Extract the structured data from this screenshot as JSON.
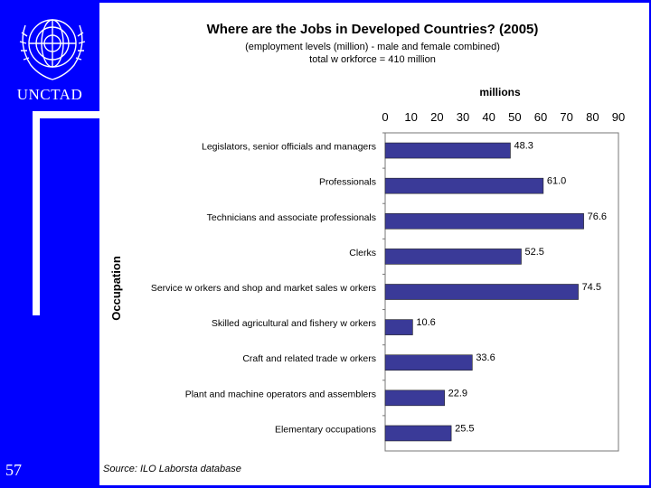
{
  "slide": {
    "org_label": "UNCTAD",
    "page_number": "57",
    "source": "Source: ILO Laborsta database"
  },
  "colors": {
    "background": "#0000FF",
    "bar": "#3A3A98",
    "panel": "#FFFFFF"
  },
  "chart_data": {
    "type": "bar",
    "orientation": "horizontal",
    "title": "Where are the Jobs in Developed Countries? (2005)",
    "subtitle": "(employment levels (million) - male and female combined)",
    "subtitle2": "total w orkforce = 410 million",
    "xlabel": "millions",
    "ylabel": "Occupation",
    "xlim": [
      0,
      90
    ],
    "xticks": [
      "0",
      "10",
      "20",
      "30",
      "40",
      "50",
      "60",
      "70",
      "80",
      "90"
    ],
    "categories": [
      "Legislators, senior officials and managers",
      "Professionals",
      "Technicians and associate professionals",
      "Clerks",
      "Service w orkers and shop and market sales w orkers",
      "Skilled agricultural and fishery w orkers",
      "Craft and related trade w orkers",
      "Plant and machine operators and assemblers",
      "Elementary occupations"
    ],
    "values": [
      48.3,
      61.0,
      76.6,
      52.5,
      74.5,
      10.6,
      33.6,
      22.9,
      25.5
    ],
    "value_labels": [
      "48.3",
      "61.0",
      "76.6",
      "52.5",
      "74.5",
      "10.6",
      "33.6",
      "22.9",
      "25.5"
    ]
  }
}
